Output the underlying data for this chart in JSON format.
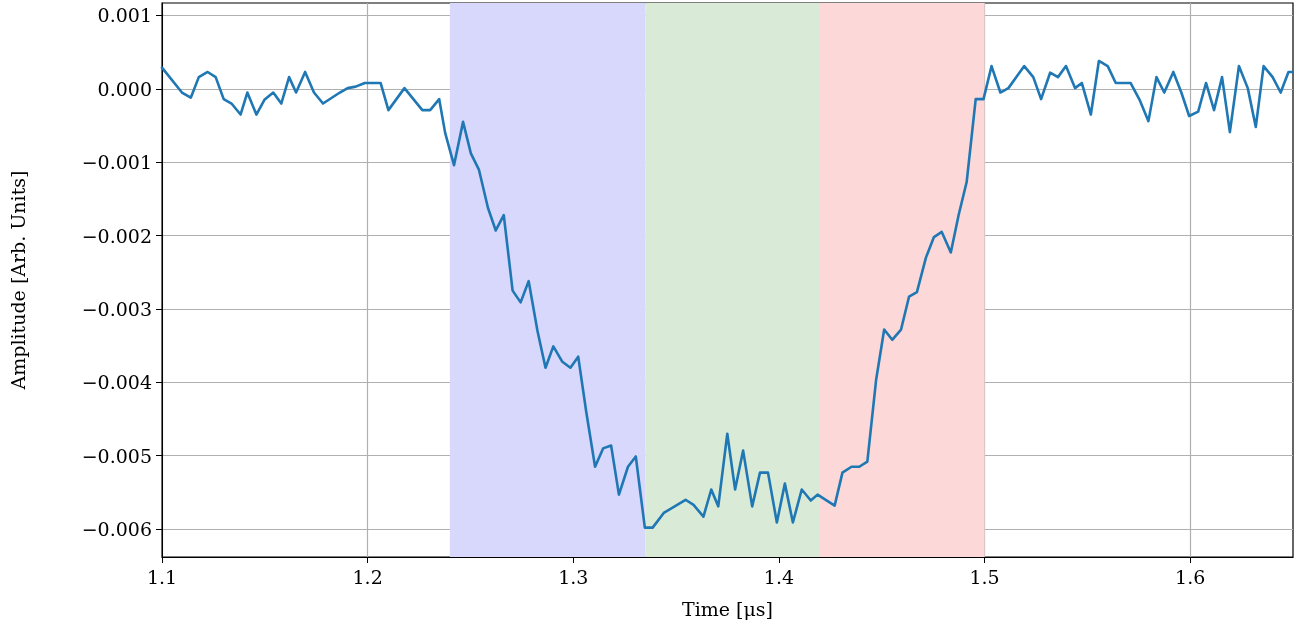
{
  "chart_data": {
    "type": "line",
    "xlabel": "Time [μs]",
    "ylabel": "Amplitude [Arb. Units]",
    "xlim": [
      1.1,
      1.65
    ],
    "xticks": [
      1.1,
      1.2,
      1.3,
      1.4,
      1.5,
      1.6
    ],
    "ylim": [
      -0.00638,
      0.00117
    ],
    "yticks": [
      0.001,
      {
        "value": 0,
        "label": "0.000"
      },
      {
        "value": -0.001,
        "label": "−0.001"
      },
      {
        "value": -0.002,
        "label": "−0.002"
      },
      {
        "value": -0.003,
        "label": "−0.003"
      },
      {
        "value": -0.004,
        "label": "−0.004"
      },
      {
        "value": -0.005,
        "label": "−0.005"
      },
      {
        "value": -0.006,
        "label": "−0.006"
      }
    ],
    "grid": true,
    "marker": "none",
    "line_style": "solid",
    "bands": [
      {
        "axis": "x",
        "from": 1.24,
        "to": 1.335,
        "color": "#d8d8fc"
      },
      {
        "axis": "x",
        "from": 1.335,
        "to": 1.42,
        "color": "#d9ead7"
      },
      {
        "axis": "x",
        "from": 1.42,
        "to": 1.5,
        "color": "#fdd8d8"
      }
    ],
    "series": [
      {
        "color": "#1f77b4",
        "x": [
          1.1,
          1.1097,
          1.114,
          1.1179,
          1.1222,
          1.1261,
          1.13,
          1.1338,
          1.1382,
          1.1415,
          1.1459,
          1.1498,
          1.1541,
          1.158,
          1.1618,
          1.1652,
          1.1696,
          1.1739,
          1.1783,
          1.1865,
          1.1903,
          1.1942,
          1.1986,
          1.2063,
          1.2101,
          1.2179,
          1.2266,
          1.2304,
          1.2348,
          1.2377,
          1.242,
          1.2464,
          1.2502,
          1.2541,
          1.2585,
          1.2623,
          1.2662,
          1.2705,
          1.2744,
          1.2783,
          1.2826,
          1.2865,
          1.2903,
          1.2947,
          1.2986,
          1.3024,
          1.3063,
          1.3106,
          1.3145,
          1.3184,
          1.3222,
          1.3266,
          1.3304,
          1.3348,
          1.3386,
          1.344,
          1.3546,
          1.3585,
          1.3633,
          1.3671,
          1.3705,
          1.3749,
          1.3787,
          1.3826,
          1.387,
          1.3908,
          1.3947,
          1.399,
          1.4029,
          1.4068,
          1.4111,
          1.4155,
          1.4188,
          1.4271,
          1.4309,
          1.4353,
          1.4391,
          1.443,
          1.4473,
          1.4512,
          1.4551,
          1.4594,
          1.4633,
          1.4671,
          1.4715,
          1.4754,
          1.4792,
          1.4836,
          1.4874,
          1.4913,
          1.4957,
          1.4995,
          1.5034,
          1.5077,
          1.5116,
          1.5193,
          1.5237,
          1.5275,
          1.5319,
          1.5357,
          1.5396,
          1.544,
          1.5473,
          1.5517,
          1.5556,
          1.5599,
          1.5638,
          1.571,
          1.5754,
          1.5797,
          1.5836,
          1.5874,
          1.5918,
          1.5957,
          1.5995,
          1.6039,
          1.6077,
          1.6116,
          1.6155,
          1.6193,
          1.6237,
          1.628,
          1.6319,
          1.6357,
          1.6401,
          1.644,
          1.6478,
          1.65
        ],
        "values": [
          0.00029,
          -5e-05,
          -0.00012,
          0.00016,
          0.00023,
          0.00016,
          -0.00014,
          -0.0002,
          -0.00035,
          -5e-05,
          -0.00035,
          -0.00015,
          -5e-05,
          -0.0002,
          0.00016,
          -5e-05,
          0.00023,
          -5e-05,
          -0.0002,
          -5e-05,
          1e-05,
          3e-05,
          8e-05,
          8e-05,
          -0.00029,
          1e-05,
          -0.00029,
          -0.00029,
          -0.00014,
          -0.0006,
          -0.00104,
          -0.00045,
          -0.00088,
          -0.0011,
          -0.00162,
          -0.00193,
          -0.00172,
          -0.00275,
          -0.00291,
          -0.00262,
          -0.0033,
          -0.0038,
          -0.00351,
          -0.00372,
          -0.0038,
          -0.00365,
          -0.0044,
          -0.00515,
          -0.0049,
          -0.00486,
          -0.00553,
          -0.00515,
          -0.00501,
          -0.00598,
          -0.00598,
          -0.00578,
          -0.0056,
          -0.00567,
          -0.00583,
          -0.00546,
          -0.00569,
          -0.0047,
          -0.00546,
          -0.00493,
          -0.00569,
          -0.00523,
          -0.00523,
          -0.00591,
          -0.00538,
          -0.00591,
          -0.00546,
          -0.00561,
          -0.00553,
          -0.00568,
          -0.00523,
          -0.00515,
          -0.00515,
          -0.00508,
          -0.00396,
          -0.00328,
          -0.00342,
          -0.00328,
          -0.00283,
          -0.00277,
          -0.0023,
          -0.00202,
          -0.00195,
          -0.00223,
          -0.00172,
          -0.00127,
          -0.00014,
          -0.00014,
          0.00031,
          -5e-05,
          1e-05,
          0.00031,
          0.00016,
          -0.00014,
          0.00022,
          0.00016,
          0.00031,
          1e-05,
          8e-05,
          -0.00035,
          0.00038,
          0.00031,
          8e-05,
          8e-05,
          -0.00015,
          -0.00044,
          0.00016,
          -5e-05,
          0.00023,
          -5e-05,
          -0.00037,
          -0.00031,
          8e-05,
          -0.00029,
          0.00016,
          -0.00059,
          0.00031,
          1e-05,
          -0.00052,
          0.00031,
          0.00016,
          -5e-05,
          0.00023,
          0.00023
        ]
      }
    ]
  }
}
